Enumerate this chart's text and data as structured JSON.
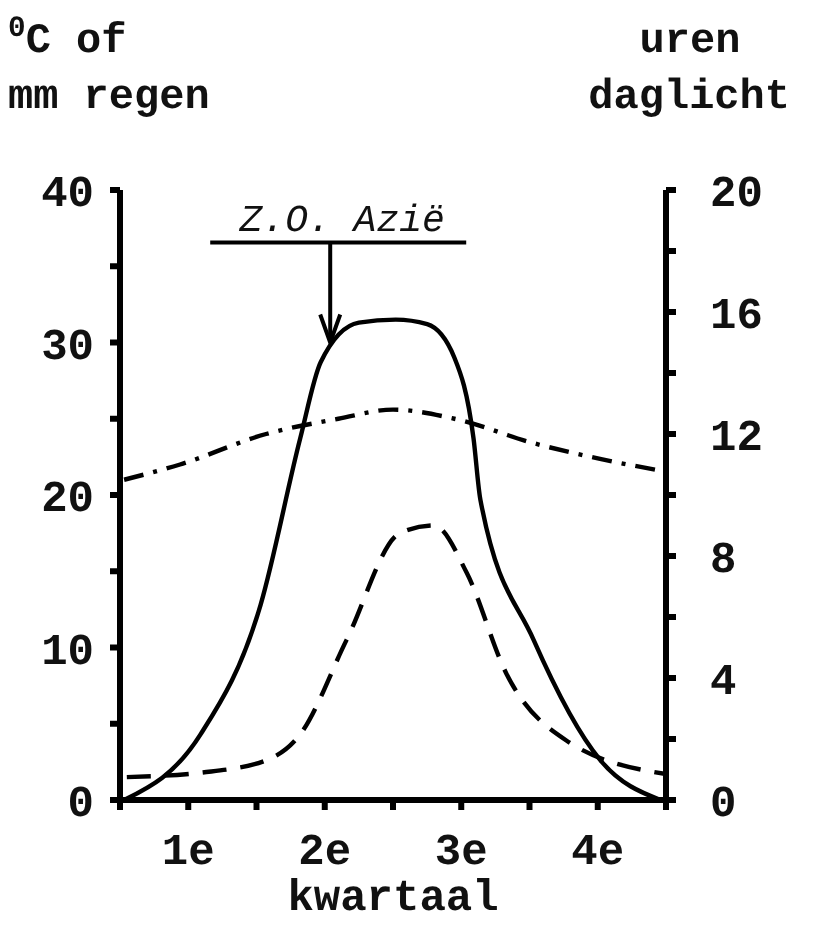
{
  "chart_data": {
    "type": "line",
    "ylabel": "$^{0}$C  of\nmm regen",
    "y2label": "uren\ndaglicht",
    "xlabel": "kwartaal",
    "annotations": [
      {
        "text": "Z.O. Azië",
        "x": 1.54,
        "y": 30
      }
    ],
    "xlim": [
      0,
      4
    ],
    "xticks": [
      {
        "value": 0,
        "label": null
      },
      {
        "value": 0.5,
        "label": "1e"
      },
      {
        "value": 1,
        "label": null
      },
      {
        "value": 1.5,
        "label": "2e"
      },
      {
        "value": 2,
        "label": null
      },
      {
        "value": 2.5,
        "label": "3e"
      },
      {
        "value": 3,
        "label": null
      },
      {
        "value": 3.5,
        "label": "4e"
      },
      {
        "value": 4,
        "label": null
      }
    ],
    "ylim": [
      0,
      40
    ],
    "yticks": [
      0,
      {
        "value": 5,
        "label": null
      },
      10,
      {
        "value": 15,
        "label": null
      },
      20,
      {
        "value": 25,
        "label": null
      },
      30,
      {
        "value": 35,
        "label": null
      },
      40
    ],
    "y2lim": [
      0,
      20
    ],
    "y2ticks": [
      0,
      {
        "value": 2,
        "label": null
      },
      4,
      {
        "value": 6,
        "label": null
      },
      8,
      {
        "value": 10,
        "label": null
      },
      12,
      {
        "value": 14,
        "label": null
      },
      16,
      {
        "value": 18,
        "label": null
      },
      20
    ],
    "grid": false,
    "legend": false,
    "marker": "none",
    "series": [
      {
        "color": "#000000",
        "line_style": "solid",
        "x": [
          0.03,
          0.59,
          1.03,
          1.32,
          1.47,
          1.75,
          2.02,
          2.25,
          2.45,
          2.59,
          2.64,
          3.03,
          3.52,
          3.96
        ],
        "values": [
          0,
          4.3,
          12.8,
          23.7,
          28.7,
          31.3,
          31.5,
          31.2,
          29,
          23.7,
          19.7,
          10.5,
          2.6,
          0
        ]
      },
      {
        "color": "#000000",
        "line_style": "dashed",
        "x": [
          0.05,
          0.6,
          1.07,
          1.32,
          1.66,
          2.05,
          2.3,
          2.54,
          2.83,
          3.27,
          4
        ],
        "values": [
          1.5,
          1.8,
          2.6,
          4.3,
          10.5,
          17.5,
          18,
          14.9,
          8.3,
          3.9,
          1.7
        ]
      },
      {
        "color": "#000000",
        "line_style": "dashdot",
        "axis": "y2",
        "x": [
          0.03,
          0.44,
          1.07,
          1.6,
          2.0,
          2.45,
          3.03,
          3.5,
          3.96
        ],
        "values": [
          10.5,
          11.0,
          12.0,
          12.5,
          12.8,
          12.5,
          11.7,
          11.2,
          10.8
        ]
      }
    ]
  }
}
